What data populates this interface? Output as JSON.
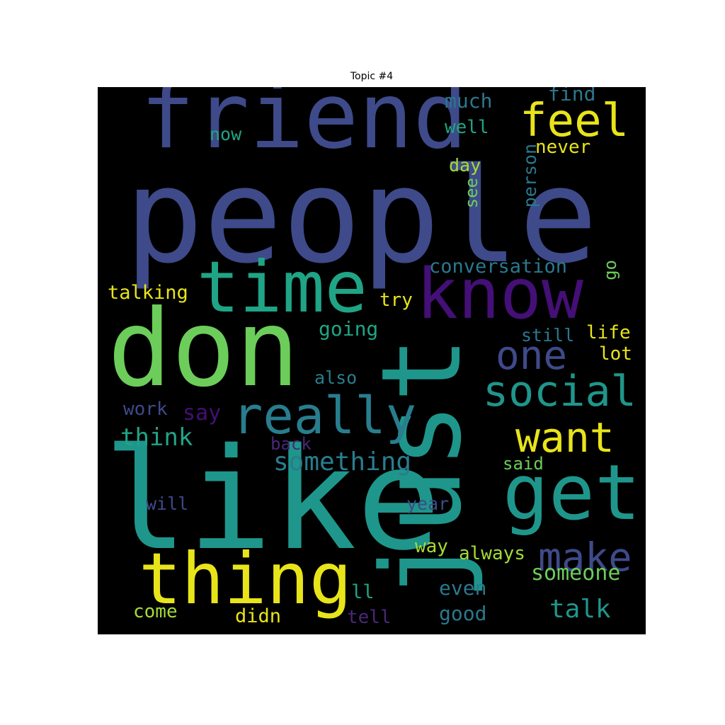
{
  "chart_data": {
    "type": "wordcloud",
    "title": "Topic #4",
    "background": "#000000",
    "words": [
      {
        "text": "people",
        "color": "#3e4a89"
      },
      {
        "text": "friend",
        "color": "#3e4a89"
      },
      {
        "text": "like",
        "color": "#1f968b"
      },
      {
        "text": "don",
        "color": "#6ccd5a"
      },
      {
        "text": "just",
        "color": "#1f968b"
      },
      {
        "text": "time",
        "color": "#20a486"
      },
      {
        "text": "know",
        "color": "#440f76"
      },
      {
        "text": "thing",
        "color": "#e8e41a"
      },
      {
        "text": "get",
        "color": "#1f968b"
      },
      {
        "text": "really",
        "color": "#287d8e"
      },
      {
        "text": "social",
        "color": "#1f968b"
      },
      {
        "text": "feel",
        "color": "#e8e41a"
      },
      {
        "text": "one",
        "color": "#3e4a89"
      },
      {
        "text": "want",
        "color": "#e8e41a"
      },
      {
        "text": "make",
        "color": "#3e4a89"
      },
      {
        "text": "talk",
        "color": "#1f968b"
      },
      {
        "text": "something",
        "color": "#287d8e"
      },
      {
        "text": "conversation",
        "color": "#2a788e"
      },
      {
        "text": "think",
        "color": "#20a486"
      },
      {
        "text": "someone",
        "color": "#6ccd5a"
      },
      {
        "text": "talking",
        "color": "#e8e41a"
      },
      {
        "text": "going",
        "color": "#20a486"
      },
      {
        "text": "much",
        "color": "#2a788e"
      },
      {
        "text": "find",
        "color": "#2a788e"
      },
      {
        "text": "well",
        "color": "#20a486"
      },
      {
        "text": "now",
        "color": "#20a486"
      },
      {
        "text": "never",
        "color": "#e8e41a"
      },
      {
        "text": "person",
        "color": "#2a788e"
      },
      {
        "text": "day",
        "color": "#a5db36"
      },
      {
        "text": "see",
        "color": "#6ccd5a"
      },
      {
        "text": "go",
        "color": "#6ccd5a"
      },
      {
        "text": "try",
        "color": "#e8e41a"
      },
      {
        "text": "still",
        "color": "#2a788e"
      },
      {
        "text": "life",
        "color": "#e8e41a"
      },
      {
        "text": "lot",
        "color": "#e8e41a"
      },
      {
        "text": "also",
        "color": "#287d8e"
      },
      {
        "text": "work",
        "color": "#3e4a89"
      },
      {
        "text": "say",
        "color": "#440f76"
      },
      {
        "text": "back",
        "color": "#482878"
      },
      {
        "text": "said",
        "color": "#6ccd5a"
      },
      {
        "text": "will",
        "color": "#3e4a89"
      },
      {
        "text": "year",
        "color": "#3e4a89"
      },
      {
        "text": "way",
        "color": "#a5db36"
      },
      {
        "text": "always",
        "color": "#a5db36"
      },
      {
        "text": "even",
        "color": "#2a788e"
      },
      {
        "text": "ll",
        "color": "#20a486"
      },
      {
        "text": "come",
        "color": "#a5db36"
      },
      {
        "text": "didn",
        "color": "#e8e41a"
      },
      {
        "text": "tell",
        "color": "#482878"
      },
      {
        "text": "good",
        "color": "#2a788e"
      }
    ]
  }
}
